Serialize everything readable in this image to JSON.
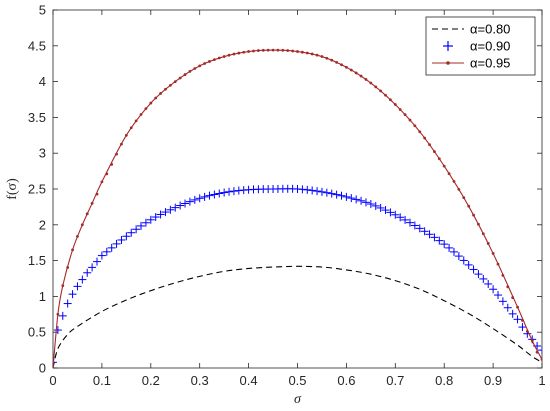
{
  "chart_data": {
    "type": "line",
    "xlabel": "σ",
    "ylabel": "f(σ)",
    "xlim": [
      0,
      1
    ],
    "ylim": [
      0,
      5
    ],
    "x_ticks": [
      "0",
      "0.1",
      "0.2",
      "0.3",
      "0.4",
      "0.5",
      "0.6",
      "0.7",
      "0.8",
      "0.9",
      "1"
    ],
    "y_ticks": [
      "0",
      "0.5",
      "1",
      "1.5",
      "2",
      "2.5",
      "3",
      "3.5",
      "4",
      "4.5",
      "5"
    ],
    "grid": false,
    "legend_position": "top-right",
    "series": [
      {
        "name": "α=0.80",
        "style": "dashed",
        "color": "#000000",
        "x": [
          0,
          0.01,
          0.03,
          0.05,
          0.1,
          0.15,
          0.2,
          0.25,
          0.3,
          0.35,
          0.4,
          0.45,
          0.5,
          0.55,
          0.6,
          0.65,
          0.7,
          0.75,
          0.8,
          0.85,
          0.9,
          0.95,
          0.98,
          1.0
        ],
        "y": [
          0,
          0.27,
          0.47,
          0.58,
          0.79,
          0.95,
          1.08,
          1.19,
          1.28,
          1.35,
          1.39,
          1.41,
          1.42,
          1.41,
          1.37,
          1.31,
          1.22,
          1.1,
          0.94,
          0.76,
          0.55,
          0.32,
          0.16,
          0.08
        ]
      },
      {
        "name": "α=0.90",
        "style": "markers-plus",
        "color": "#0000ff",
        "x": [
          0,
          0.01,
          0.03,
          0.05,
          0.07,
          0.1,
          0.15,
          0.2,
          0.25,
          0.3,
          0.35,
          0.4,
          0.45,
          0.5,
          0.55,
          0.6,
          0.65,
          0.7,
          0.75,
          0.8,
          0.85,
          0.9,
          0.95,
          0.98,
          1.0
        ],
        "y": [
          0.08,
          0.53,
          0.9,
          1.14,
          1.33,
          1.57,
          1.84,
          2.07,
          2.24,
          2.37,
          2.45,
          2.49,
          2.5,
          2.5,
          2.46,
          2.39,
          2.29,
          2.14,
          1.95,
          1.73,
          1.44,
          1.1,
          0.68,
          0.4,
          0.25
        ]
      },
      {
        "name": "α=0.95",
        "style": "solid-dots",
        "color": "#a52a2a",
        "x": [
          0,
          0.01,
          0.02,
          0.04,
          0.06,
          0.08,
          0.1,
          0.15,
          0.2,
          0.25,
          0.3,
          0.35,
          0.4,
          0.45,
          0.5,
          0.55,
          0.6,
          0.65,
          0.7,
          0.75,
          0.8,
          0.85,
          0.9,
          0.95,
          0.98,
          1.0
        ],
        "y": [
          0,
          0.75,
          1.15,
          1.65,
          2.0,
          2.3,
          2.6,
          3.25,
          3.7,
          4.0,
          4.22,
          4.35,
          4.42,
          4.44,
          4.42,
          4.35,
          4.2,
          3.98,
          3.68,
          3.3,
          2.82,
          2.26,
          1.6,
          0.85,
          0.38,
          0.12
        ]
      }
    ]
  }
}
